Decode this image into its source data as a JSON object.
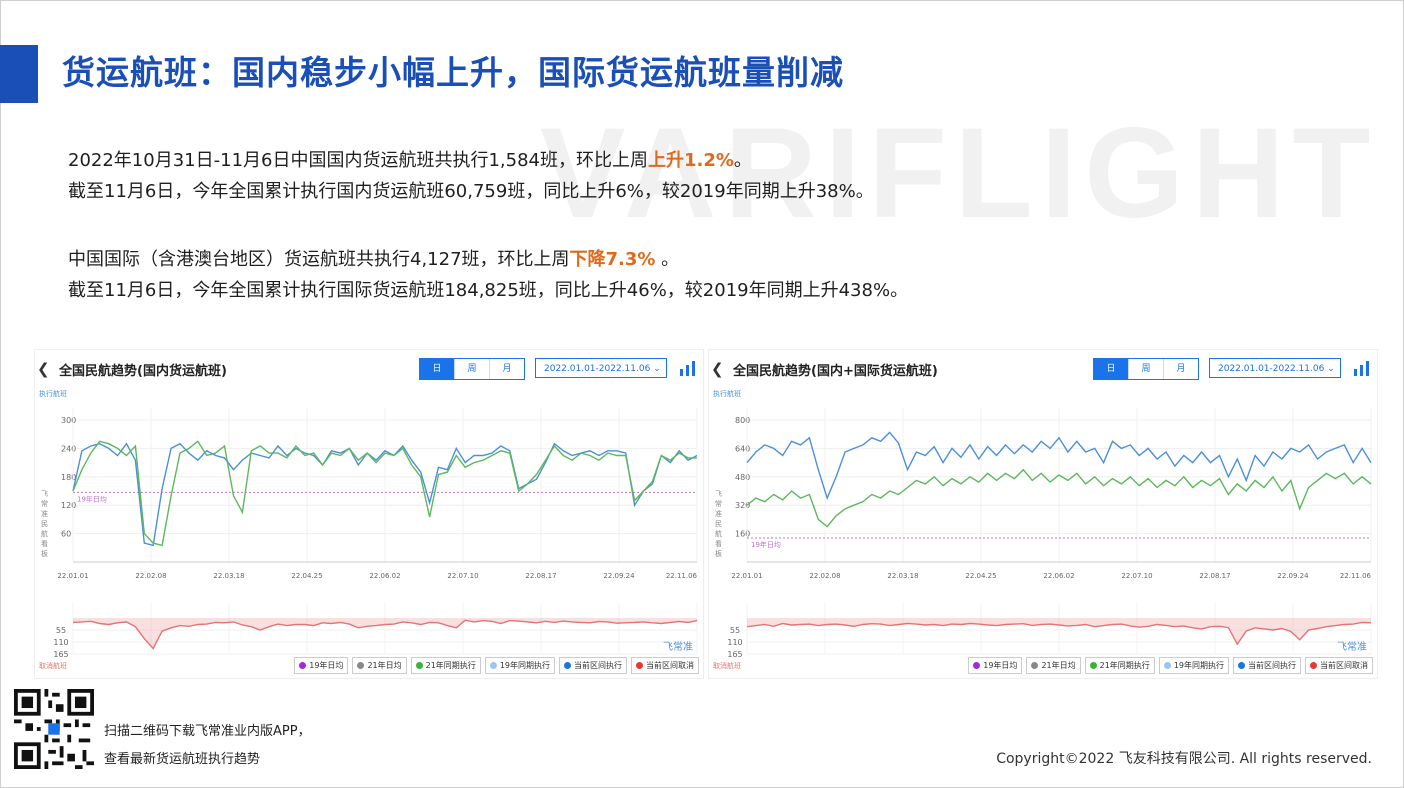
{
  "slide": {
    "title": "货运航班：国内稳步小幅上升，国际货运航班量削减",
    "watermark": "VARIFLIGHT",
    "para1": {
      "line1_pre": "2022年10月31日-11月6日中国国内货运航班共执行1,584班，环比上周",
      "line1_hl": "上升1.2%",
      "line1_post": "。",
      "line2": "截至11月6日，今年全国累计执行国内货运航班60,759班，同比上升6%，较2019年同期上升38%。"
    },
    "para2": {
      "line1_pre": "中国国际（含港澳台地区）货运航班共执行4,127班，环比上周",
      "line1_hl": "下降7.3%",
      "line1_post": " 。",
      "line2": "截至11月6日，今年全国累计执行国际货运航班184,825班，同比上升46%，较2019年同期上升438%。"
    },
    "footer": {
      "line1": "扫描二维码下载飞常准业内版APP，",
      "line2": "查看最新货运航班执行趋势",
      "copyright": "Copyright©2022 飞友科技有限公司. All rights reserved."
    },
    "colors": {
      "accent": "#1a4fb8",
      "highlight": "#e06a1a",
      "series_current": "#4a90d9",
      "series_2021": "#5cb85c",
      "series_cancel": "#e57373",
      "avg_2019": "#c06fd0"
    }
  },
  "ui": {
    "back_icon": "chevron-left-icon",
    "seg_day": "日",
    "seg_week": "周",
    "seg_month": "月",
    "date_range": "2022.01.01-2022.11.06",
    "dropdown_icon": "chevron-down-icon",
    "chart_icon": "bar-chart-icon",
    "brand_mark": "飞常准"
  },
  "chart_data": [
    {
      "type": "line",
      "title": "全国民航趋势(国内货运航班)",
      "top_ylabel": "执行航班",
      "side_label": "飞常准民航看板",
      "bottom_ylabel": "取消航班",
      "x_ticks": [
        "22.01.01",
        "22.02.08",
        "22.03.18",
        "22.04.25",
        "22.06.02",
        "22.07.10",
        "22.08.17",
        "22.09.24",
        "22.11.06"
      ],
      "y_ticks": [
        300,
        240,
        180,
        120,
        60
      ],
      "ylim": [
        0,
        300
      ],
      "cancel_ticks": [
        55,
        110,
        165
      ],
      "cancel_ylim": [
        0,
        165
      ],
      "avg_2019_label": "19年日均",
      "avg_2019": 147,
      "legend": [
        "19年日均",
        "21年日均",
        "21年同期执行",
        "19年同期执行",
        "当前区间执行",
        "当前区间取消"
      ],
      "series": [
        {
          "name": "当前区间执行",
          "color": "#4a90d9",
          "values": [
            150,
            235,
            245,
            250,
            240,
            225,
            250,
            215,
            40,
            35,
            155,
            240,
            250,
            230,
            215,
            235,
            225,
            220,
            195,
            215,
            230,
            225,
            220,
            245,
            225,
            240,
            230,
            225,
            205,
            235,
            230,
            240,
            205,
            230,
            215,
            235,
            225,
            245,
            215,
            190,
            125,
            200,
            195,
            240,
            210,
            225,
            225,
            230,
            245,
            235,
            155,
            165,
            175,
            210,
            250,
            235,
            225,
            230,
            235,
            225,
            235,
            235,
            230,
            120,
            150,
            165,
            225,
            210,
            235,
            215,
            225
          ]
        },
        {
          "name": "21年同期执行",
          "color": "#5cb85c",
          "values": [
            150,
            195,
            230,
            255,
            250,
            240,
            225,
            245,
            60,
            40,
            35,
            140,
            230,
            240,
            255,
            225,
            230,
            245,
            140,
            105,
            235,
            245,
            230,
            230,
            220,
            245,
            225,
            230,
            205,
            230,
            225,
            240,
            215,
            230,
            210,
            230,
            225,
            240,
            205,
            180,
            95,
            185,
            190,
            225,
            200,
            210,
            215,
            225,
            235,
            230,
            150,
            165,
            185,
            215,
            245,
            225,
            215,
            230,
            225,
            215,
            230,
            225,
            225,
            130,
            150,
            170,
            225,
            215,
            230,
            220,
            220
          ]
        },
        {
          "name": "当前区间取消",
          "color": "#e57373",
          "values": [
            20,
            18,
            15,
            25,
            30,
            22,
            18,
            40,
            95,
            140,
            60,
            45,
            35,
            38,
            30,
            28,
            20,
            22,
            18,
            32,
            40,
            55,
            40,
            28,
            35,
            30,
            30,
            35,
            22,
            25,
            20,
            28,
            45,
            38,
            35,
            30,
            28,
            18,
            22,
            30,
            20,
            22,
            35,
            45,
            10,
            18,
            12,
            15,
            25,
            12,
            14,
            18,
            22,
            15,
            20,
            14,
            18,
            20,
            22,
            16,
            18,
            24,
            22,
            20,
            18,
            22,
            25,
            20,
            16,
            20,
            12
          ]
        }
      ]
    },
    {
      "type": "line",
      "title": "全国民航趋势(国内+国际货运航班)",
      "top_ylabel": "执行航班",
      "side_label": "飞常准民航看板",
      "bottom_ylabel": "取消航班",
      "x_ticks": [
        "22.01.01",
        "22.02.08",
        "22.03.18",
        "22.04.25",
        "22.06.02",
        "22.07.10",
        "22.08.17",
        "22.09.24",
        "22.11.06"
      ],
      "y_ticks": [
        800,
        640,
        480,
        320,
        160
      ],
      "ylim": [
        0,
        800
      ],
      "cancel_ticks": [
        55,
        110,
        165
      ],
      "cancel_ylim": [
        0,
        165
      ],
      "avg_2019_label": "19年日均",
      "avg_2019": 135,
      "legend": [
        "19年日均",
        "21年日均",
        "21年同期执行",
        "19年同期执行",
        "当前区间执行",
        "当前区间取消"
      ],
      "series": [
        {
          "name": "当前区间执行",
          "color": "#4a90d9",
          "values": [
            560,
            620,
            660,
            640,
            600,
            680,
            660,
            700,
            520,
            360,
            480,
            620,
            640,
            660,
            700,
            680,
            730,
            670,
            520,
            620,
            600,
            650,
            560,
            640,
            590,
            660,
            580,
            650,
            600,
            660,
            610,
            660,
            620,
            680,
            640,
            700,
            620,
            680,
            620,
            640,
            560,
            680,
            640,
            660,
            600,
            640,
            580,
            620,
            540,
            600,
            560,
            620,
            560,
            600,
            480,
            580,
            460,
            600,
            540,
            620,
            580,
            640,
            620,
            660,
            580,
            620,
            640,
            660,
            560,
            640,
            560
          ]
        },
        {
          "name": "21年同期执行",
          "color": "#5cb85c",
          "values": [
            320,
            360,
            340,
            380,
            350,
            400,
            360,
            380,
            240,
            200,
            260,
            300,
            320,
            340,
            380,
            360,
            400,
            380,
            420,
            460,
            440,
            480,
            430,
            470,
            440,
            480,
            450,
            500,
            460,
            500,
            470,
            520,
            460,
            500,
            450,
            490,
            460,
            500,
            440,
            480,
            430,
            470,
            440,
            480,
            430,
            470,
            420,
            460,
            430,
            480,
            420,
            460,
            430,
            470,
            380,
            440,
            400,
            460,
            420,
            480,
            400,
            460,
            300,
            420,
            460,
            500,
            470,
            500,
            440,
            480,
            440
          ]
        },
        {
          "name": "当前区间取消",
          "color": "#e57373",
          "values": [
            40,
            35,
            30,
            38,
            25,
            32,
            30,
            28,
            35,
            30,
            28,
            32,
            38,
            30,
            26,
            28,
            35,
            30,
            25,
            28,
            32,
            30,
            35,
            28,
            30,
            25,
            28,
            32,
            35,
            30,
            28,
            26,
            34,
            30,
            28,
            32,
            36,
            34,
            30,
            40,
            35,
            30,
            28,
            36,
            42,
            38,
            30,
            34,
            40,
            36,
            45,
            50,
            40,
            38,
            44,
            120,
            60,
            45,
            50,
            55,
            48,
            62,
            100,
            55,
            48,
            40,
            35,
            30,
            28,
            20,
            22
          ]
        }
      ]
    }
  ]
}
